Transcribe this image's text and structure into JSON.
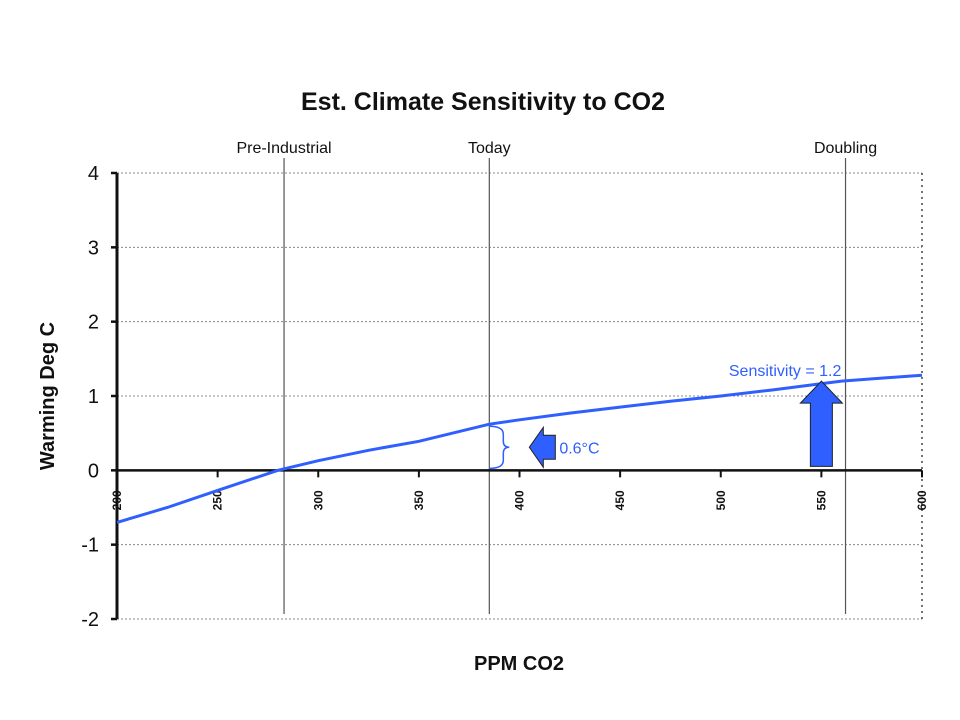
{
  "chart_data": {
    "type": "line",
    "title": "Est. Climate Sensitivity to CO2",
    "xlabel": "PPM CO2",
    "ylabel": "Warming Deg C",
    "xlim": [
      200,
      600
    ],
    "ylim": [
      -2,
      4
    ],
    "x_ticks": [
      "200",
      "250",
      "300",
      "350",
      "400",
      "450",
      "500",
      "550",
      "600"
    ],
    "y_ticks": [
      "4",
      "3",
      "2",
      "1",
      "0",
      "-1",
      "-2"
    ],
    "grid": true,
    "series": [
      {
        "name": "Sensitivity = 1.2",
        "color": "#2f5fff",
        "x": [
          200,
          225,
          250,
          280,
          300,
          325,
          350,
          385,
          400,
          425,
          450,
          475,
          500,
          525,
          560,
          575,
          600
        ],
        "y": [
          -0.7,
          -0.5,
          -0.27,
          0.0,
          0.13,
          0.27,
          0.39,
          0.62,
          0.68,
          0.77,
          0.85,
          0.93,
          1.0,
          1.08,
          1.2,
          1.23,
          1.28
        ]
      }
    ],
    "reference_lines": [
      {
        "label": "Pre-Industrial",
        "x": 283
      },
      {
        "label": "Today",
        "x": 385
      },
      {
        "label": "Doubling",
        "x": 562
      }
    ],
    "annotations": [
      {
        "text": "0.6°C",
        "type": "brace-arrow-left",
        "x": 385,
        "y_from": 0,
        "y_to": 0.62
      },
      {
        "text": "Sensitivity = 1.2",
        "type": "arrow-up",
        "x": 550,
        "y_from": 0,
        "y_to": 1.2
      }
    ],
    "accent_color": "#2f5fff"
  }
}
